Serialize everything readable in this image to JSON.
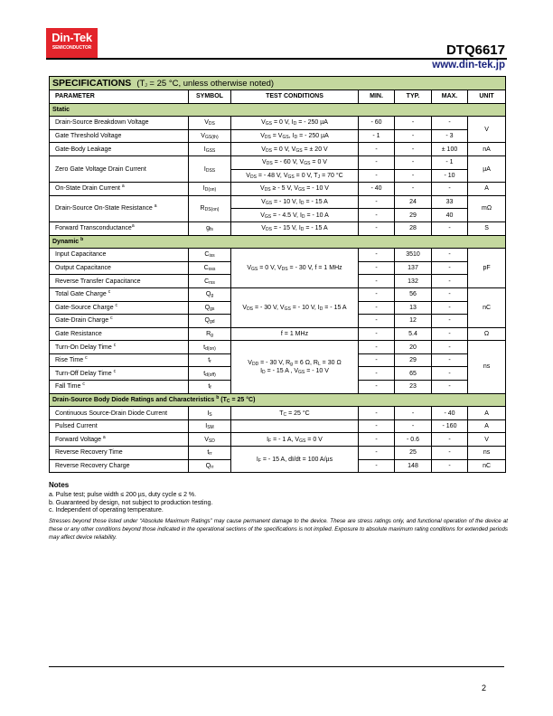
{
  "header": {
    "logo_text": "Din-Tek",
    "logo_sub": "SEMICONDUCTOR",
    "part_number": "DTQ6617",
    "url": "www.din-tek.jp",
    "brand_color": "#e3242b",
    "url_color": "#1a237e"
  },
  "table": {
    "title": "SPECIFICATIONS",
    "title_condition": "(T_{J} = 25 °C, unless otherwise noted)",
    "header_color": "#c4d89e",
    "columns": [
      "PARAMETER",
      "SYMBOL",
      "TEST CONDITIONS",
      "MIN.",
      "TYP.",
      "MAX.",
      "UNIT"
    ],
    "sections": [
      {
        "label": "Static",
        "rows": [
          [
            "Drain-Source Breakdown Voltage",
            "V_{DS}",
            "V_{GS} = 0 V, I_{D} = - 250 µA",
            "- 60",
            "-",
            "-",
            {
              "t": "V",
              "rs": 2
            }
          ],
          [
            "Gate Threshold Voltage",
            "V_{GS(th)}",
            "V_{DS} = V_{GS}, I_{D} = - 250 µA",
            "- 1",
            "-",
            "- 3",
            null
          ],
          [
            "Gate-Body Leakage",
            "I_{GSS}",
            "V_{DS} = 0 V, V_{GS} = ± 20 V",
            "-",
            "-",
            "± 100",
            "nA"
          ],
          [
            {
              "t": "Zero Gate Voltage Drain Current",
              "rs": 2
            },
            {
              "t": "I_{DSS}",
              "rs": 2
            },
            "V_{DS} = - 60 V, V_{GS} = 0 V",
            "-",
            "-",
            "- 1",
            {
              "t": "µA",
              "rs": 2
            }
          ],
          [
            null,
            null,
            "V_{DS} = - 48 V, V_{GS} = 0 V, T_{J} = 70 °C",
            "-",
            "-",
            "- 10",
            null
          ],
          [
            "On-State Drain Current ^{a}",
            "I_{D(on)}",
            "V_{DS} ≥ - 5 V, V_{GS} = - 10 V",
            "- 40",
            "-",
            "-",
            "A"
          ],
          [
            {
              "t": "Drain-Source On-State Resistance ^{a}",
              "rs": 2
            },
            {
              "t": "R_{DS(on)}",
              "rs": 2
            },
            "V_{GS} = - 10 V, I_{D} = - 15 A",
            "-",
            "24",
            "33",
            {
              "t": "mΩ",
              "rs": 2
            }
          ],
          [
            null,
            null,
            "V_{GS} = - 4.5 V, I_{D} = - 10 A",
            "-",
            "29",
            "40",
            null
          ],
          [
            "Forward Transconductance^{a}",
            "g_{fs}",
            "V_{DS} = - 15 V, I_{D} = - 15 A",
            "-",
            "28",
            "-",
            "S"
          ]
        ]
      },
      {
        "label": "Dynamic ^{b}",
        "rows": [
          [
            "Input Capacitance",
            "C_{iss}",
            {
              "t": "V_{GS} = 0 V, V_{DS} = - 30 V, f = 1 MHz",
              "rs": 3
            },
            "-",
            "3510",
            "-",
            {
              "t": "pF",
              "rs": 3
            }
          ],
          [
            "Output Capacitance",
            "C_{oss}",
            null,
            "-",
            "137",
            "-",
            null
          ],
          [
            "Reverse Transfer Capacitance",
            "C_{rss}",
            null,
            "-",
            "132",
            "-",
            null
          ],
          [
            "Total Gate Charge ^{c}",
            "Q_{g}",
            {
              "t": "V_{DS} = - 30 V, V_{GS} = - 10 V, I_{D} = - 15 A",
              "rs": 3
            },
            "-",
            "56",
            "-",
            {
              "t": "nC",
              "rs": 3
            }
          ],
          [
            "Gate-Source Charge ^{c}",
            "Q_{gs}",
            null,
            "-",
            "13",
            "-",
            null
          ],
          [
            "Gate-Drain Charge ^{c}",
            "Q_{gd}",
            null,
            "-",
            "12",
            "-",
            null
          ],
          [
            "Gate Resistance",
            "R_{g}",
            "f = 1 MHz",
            "-",
            "5.4",
            "-",
            "Ω"
          ],
          [
            "Turn-On Delay Time ^{c}",
            "t_{d(on)}",
            {
              "t": "V_{DD} = - 30 V,  R_{g} = 6 Ω, R_{L} = 30 Ω|I_{D} = - 15 A , V_{GS} = - 10 V",
              "rs": 4
            },
            "-",
            "20",
            "-",
            {
              "t": "ns",
              "rs": 4
            }
          ],
          [
            "Rise Time ^{c}",
            "t_{r}",
            null,
            "-",
            "29",
            "-",
            null
          ],
          [
            "Turn-Off Delay Time ^{c}",
            "t_{d(off)}",
            null,
            "-",
            "65",
            "-",
            null
          ],
          [
            "Fall Time ^{c}",
            "t_{f}",
            null,
            "-",
            "23",
            "-",
            null
          ]
        ]
      },
      {
        "label": "Drain-Source Body Diode Ratings and Characteristics ^{b} (T_{C} = 25 °C)",
        "rows": [
          [
            "Continuous Source-Drain Diode Current",
            "I_{S}",
            "T_{C} = 25 °C",
            "-",
            "-",
            "- 40",
            "A"
          ],
          [
            "Pulsed Current",
            "I_{SM}",
            "",
            "-",
            "-",
            "- 160",
            "A"
          ],
          [
            "Forward Voltage ^{a}",
            "V_{SD}",
            "I_{F} = - 1 A, V_{GS} = 0 V",
            "-",
            "- 0.6",
            "-",
            "V"
          ],
          [
            "Reverse Recovery Time",
            "t_{rr}",
            {
              "t": "I_{F} = - 15 A, dI/dt = 100 A/µs",
              "rs": 2
            },
            "-",
            "25",
            "-",
            "ns"
          ],
          [
            "Reverse Recovery Charge",
            "Q_{rr}",
            null,
            "-",
            "148",
            "-",
            "nC"
          ]
        ]
      }
    ]
  },
  "notes": {
    "heading": "Notes",
    "items": [
      "a.  Pulse test; pulse width ≤ 200 µs, duty cycle ≤ 2 %.",
      "b.  Guaranteed by design, not subject to production testing.",
      "c.  Independent of operating temperature."
    ],
    "disclaimer": "Stresses beyond those listed under “Absolute Maximum Ratings” may cause permanent damage to the device. These are stress ratings only, and functional operation of the device at these or any other conditions beyond those indicated in the operational sections of the specifications is not implied. Exposure to absolute maximum rating conditions for extended periods may affect device reliability."
  },
  "footer": {
    "page_number": "2"
  }
}
